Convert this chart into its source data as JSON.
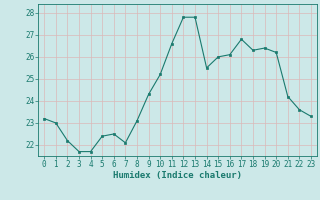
{
  "x": [
    0,
    1,
    2,
    3,
    4,
    5,
    6,
    7,
    8,
    9,
    10,
    11,
    12,
    13,
    14,
    15,
    16,
    17,
    18,
    19,
    20,
    21,
    22,
    23
  ],
  "y": [
    23.2,
    23.0,
    22.2,
    21.7,
    21.7,
    22.4,
    22.5,
    22.1,
    23.1,
    24.3,
    25.2,
    26.6,
    27.8,
    27.8,
    25.5,
    26.0,
    26.1,
    26.8,
    26.3,
    26.4,
    26.2,
    24.2,
    23.6,
    23.3
  ],
  "line_color": "#1a7a6e",
  "marker_color": "#1a7a6e",
  "bg_color": "#cce8e8",
  "grid_color": "#dbb8b8",
  "ylabel_ticks": [
    22,
    23,
    24,
    25,
    26,
    27,
    28
  ],
  "xlabel": "Humidex (Indice chaleur)",
  "ylim": [
    21.5,
    28.4
  ],
  "xlim": [
    -0.5,
    23.5
  ],
  "tick_color": "#1a7a6e",
  "xlabel_color": "#1a7a6e",
  "font_size": 5.5,
  "label_font_size": 6.5
}
